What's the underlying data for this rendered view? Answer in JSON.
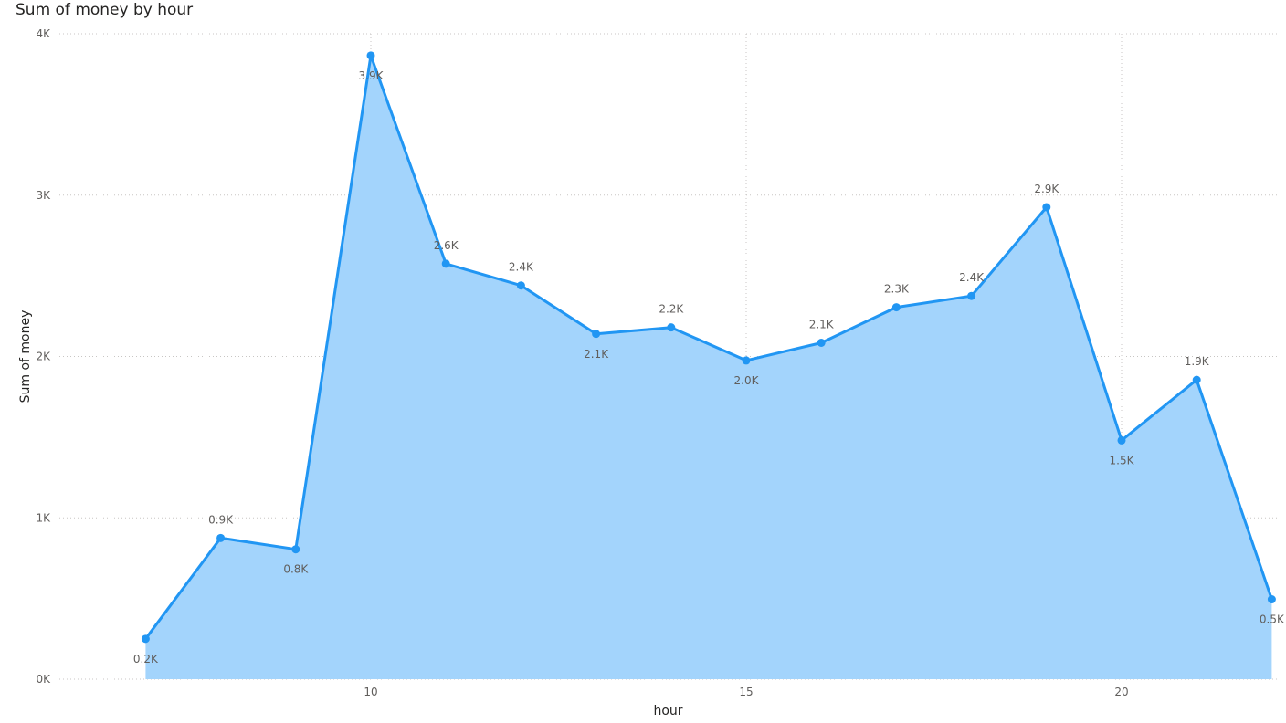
{
  "chart_data": {
    "type": "area",
    "title": "Sum of money by hour",
    "xlabel": "hour",
    "ylabel": "Sum of money",
    "xlim": [
      6,
      22
    ],
    "ylim": [
      0,
      4000
    ],
    "x_ticks": [
      10,
      15,
      20
    ],
    "y_ticks": [
      0,
      1000,
      2000,
      3000,
      4000
    ],
    "y_tick_labels": [
      "0K",
      "1K",
      "2K",
      "3K",
      "4K"
    ],
    "grid": true,
    "line_color": "#2196f3",
    "fill_color": "#a3d4fc",
    "x": [
      7,
      8,
      9,
      10,
      11,
      12,
      13,
      14,
      15,
      16,
      17,
      18,
      19,
      20,
      21,
      22
    ],
    "values": [
      250,
      875,
      805,
      3865,
      2575,
      2440,
      2140,
      2180,
      1975,
      2085,
      2305,
      2375,
      2925,
      1480,
      1855,
      495
    ],
    "labels": [
      "0.2K",
      "0.9K",
      "0.8K",
      "3.9K",
      "2.6K",
      "2.4K",
      "2.1K",
      "2.2K",
      "2.0K",
      "2.1K",
      "2.3K",
      "2.4K",
      "2.9K",
      "1.5K",
      "1.9K",
      "0.5K"
    ]
  }
}
